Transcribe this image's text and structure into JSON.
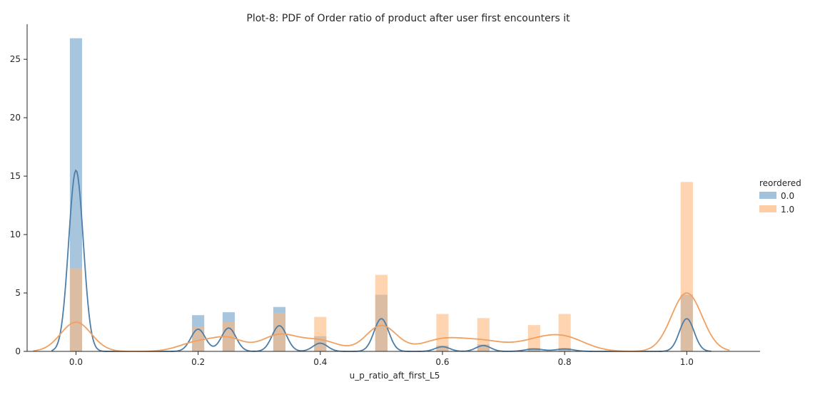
{
  "chart_data": {
    "type": "bar",
    "title": "Plot-8: PDF of Order ratio of product after user first encounters it",
    "xlabel": "u_p_ratio_aft_first_L5",
    "ylabel": "",
    "xlim": [
      -0.08,
      1.12
    ],
    "ylim": [
      0,
      28
    ],
    "x_ticks": [
      0.0,
      0.2,
      0.4,
      0.6,
      0.8,
      1.0
    ],
    "x_tick_labels": [
      "0.0",
      "0.2",
      "0.4",
      "0.6",
      "0.8",
      "1.0"
    ],
    "y_ticks": [
      0,
      5,
      10,
      15,
      20,
      25
    ],
    "y_tick_labels": [
      "0",
      "5",
      "10",
      "15",
      "20",
      "25"
    ],
    "grid": false,
    "bin_width": 0.02,
    "legend": {
      "title": "reordered",
      "placement": "right"
    },
    "series": [
      {
        "name": "0.0",
        "color": "#7aa6cc",
        "kde_color": "#4c7ea8",
        "bins": [
          {
            "x": 0.0,
            "y": 26.8
          },
          {
            "x": 0.2,
            "y": 3.1
          },
          {
            "x": 0.25,
            "y": 3.35
          },
          {
            "x": 0.333,
            "y": 3.8
          },
          {
            "x": 0.4,
            "y": 1.3
          },
          {
            "x": 0.5,
            "y": 4.85
          },
          {
            "x": 0.6,
            "y": 0.5
          },
          {
            "x": 0.667,
            "y": 0.6
          },
          {
            "x": 0.75,
            "y": 0.3
          },
          {
            "x": 0.8,
            "y": 0.3
          },
          {
            "x": 1.0,
            "y": 4.85
          }
        ],
        "kde": {
          "peaks": [
            {
              "x": 0.0,
              "h": 15.5,
              "s": 0.012
            },
            {
              "x": 0.2,
              "h": 1.9,
              "s": 0.012
            },
            {
              "x": 0.25,
              "h": 2.0,
              "s": 0.012
            },
            {
              "x": 0.333,
              "h": 2.2,
              "s": 0.012
            },
            {
              "x": 0.4,
              "h": 0.7,
              "s": 0.012
            },
            {
              "x": 0.5,
              "h": 2.8,
              "s": 0.012
            },
            {
              "x": 0.6,
              "h": 0.4,
              "s": 0.012
            },
            {
              "x": 0.667,
              "h": 0.5,
              "s": 0.012
            },
            {
              "x": 0.75,
              "h": 0.2,
              "s": 0.015
            },
            {
              "x": 0.8,
              "h": 0.2,
              "s": 0.015
            },
            {
              "x": 1.0,
              "h": 2.8,
              "s": 0.012
            }
          ],
          "range": [
            -0.04,
            1.04
          ]
        }
      },
      {
        "name": "1.0",
        "color": "#fdb87d",
        "kde_color": "#f0a060",
        "bins": [
          {
            "x": 0.0,
            "y": 7.1
          },
          {
            "x": 0.2,
            "y": 2.1
          },
          {
            "x": 0.25,
            "y": 2.5
          },
          {
            "x": 0.333,
            "y": 3.3
          },
          {
            "x": 0.4,
            "y": 2.95
          },
          {
            "x": 0.5,
            "y": 6.55
          },
          {
            "x": 0.6,
            "y": 3.2
          },
          {
            "x": 0.667,
            "y": 2.85
          },
          {
            "x": 0.75,
            "y": 2.25
          },
          {
            "x": 0.8,
            "y": 3.2
          },
          {
            "x": 1.0,
            "y": 14.5
          }
        ],
        "kde": {
          "peaks": [
            {
              "x": 0.0,
              "h": 2.5,
              "s": 0.025
            },
            {
              "x": 0.2,
              "h": 0.8,
              "s": 0.03
            },
            {
              "x": 0.25,
              "h": 1.0,
              "s": 0.025
            },
            {
              "x": 0.333,
              "h": 1.4,
              "s": 0.03
            },
            {
              "x": 0.4,
              "h": 0.9,
              "s": 0.03
            },
            {
              "x": 0.5,
              "h": 2.2,
              "s": 0.025
            },
            {
              "x": 0.6,
              "h": 1.0,
              "s": 0.035
            },
            {
              "x": 0.667,
              "h": 0.8,
              "s": 0.035
            },
            {
              "x": 0.75,
              "h": 0.7,
              "s": 0.035
            },
            {
              "x": 0.8,
              "h": 1.1,
              "s": 0.035
            },
            {
              "x": 1.0,
              "h": 5.0,
              "s": 0.025
            }
          ],
          "range": [
            -0.07,
            1.07
          ]
        }
      }
    ]
  }
}
